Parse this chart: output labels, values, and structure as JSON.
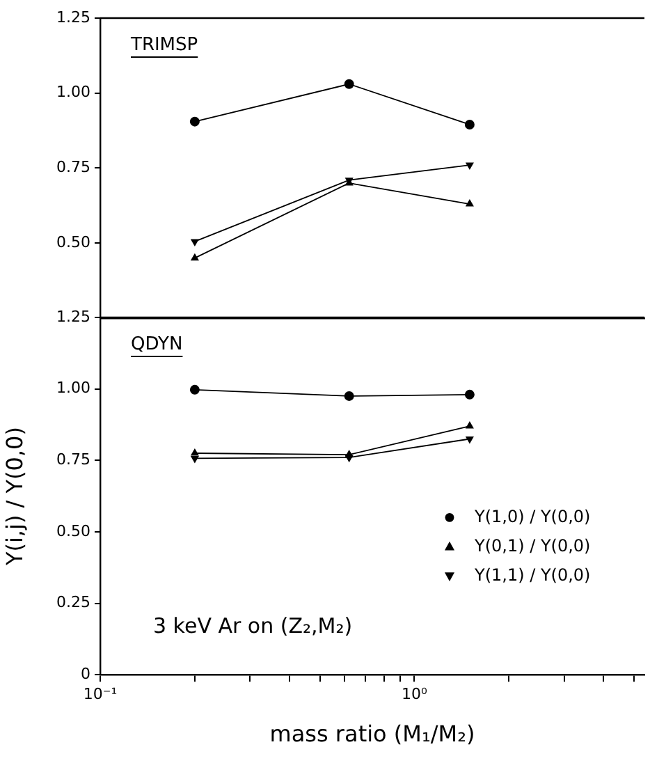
{
  "chart_data": [
    {
      "type": "line",
      "title": "TRIMSP",
      "x": [
        0.2,
        0.62,
        1.5
      ],
      "xlim": [
        0.1,
        5.4
      ],
      "ylim": [
        0.25,
        1.25
      ],
      "yticks": [
        {
          "value": 0.5,
          "label": "0.50"
        },
        {
          "value": 0.75,
          "label": "0.75"
        },
        {
          "value": 1,
          "label": "1.00"
        },
        {
          "value": 1.25,
          "label": "1.25"
        }
      ],
      "log": "x",
      "tick_labels": "y",
      "grid": false,
      "series": [
        {
          "color": "#000000",
          "marker": "circle",
          "values": [
            0.905,
            1.03,
            0.895
          ]
        },
        {
          "color": "#000000",
          "marker": "triangle",
          "values": [
            0.45,
            0.7,
            0.63
          ]
        },
        {
          "color": "#000000",
          "marker": "triangle-down",
          "values": [
            0.505,
            0.71,
            0.76
          ]
        }
      ]
    },
    {
      "type": "line",
      "title": "QDYN",
      "xlabel": "mass ratio (M₁/M₂)",
      "ylabel": "Y(i,j) / Y(0,0)",
      "x": [
        0.2,
        0.62,
        1.5
      ],
      "xlim": [
        0.1,
        5.4
      ],
      "xticks": [
        {
          "value": 0.1,
          "label": "10⁻¹"
        },
        {
          "value": 0.2,
          "label": null
        },
        {
          "value": 0.3,
          "label": null
        },
        {
          "value": 0.4,
          "label": null
        },
        {
          "value": 0.5,
          "label": null
        },
        {
          "value": 0.6,
          "label": null
        },
        {
          "value": 0.7,
          "label": null
        },
        {
          "value": 0.8,
          "label": null
        },
        {
          "value": 0.9,
          "label": null
        },
        {
          "value": 1,
          "label": "10⁰"
        },
        {
          "value": 2,
          "label": null
        },
        {
          "value": 3,
          "label": null
        },
        {
          "value": 4,
          "label": null
        },
        {
          "value": 5,
          "label": null
        }
      ],
      "ylim": [
        0,
        1.25
      ],
      "yticks": [
        0,
        {
          "value": 0.25,
          "label": "0.25"
        },
        {
          "value": 0.5,
          "label": "0.50"
        },
        {
          "value": 0.75,
          "label": "0.75"
        },
        {
          "value": 1,
          "label": "1.00"
        },
        {
          "value": 1.25,
          "label": "1.25"
        }
      ],
      "log": "x",
      "grid": false,
      "legend": "right",
      "annotations": [
        "3 keV Ar on (Z₂,M₂)"
      ],
      "series": [
        {
          "name": "Y(1,0) / Y(0,0)",
          "color": "#000000",
          "marker": "circle",
          "values": [
            0.997,
            0.975,
            0.98
          ]
        },
        {
          "name": "Y(0,1) / Y(0,0)",
          "color": "#000000",
          "marker": "triangle",
          "values": [
            0.775,
            0.77,
            0.87
          ]
        },
        {
          "name": "Y(1,1) / Y(0,0)",
          "color": "#000000",
          "marker": "triangle-down",
          "values": [
            0.757,
            0.76,
            0.825
          ]
        }
      ]
    }
  ]
}
